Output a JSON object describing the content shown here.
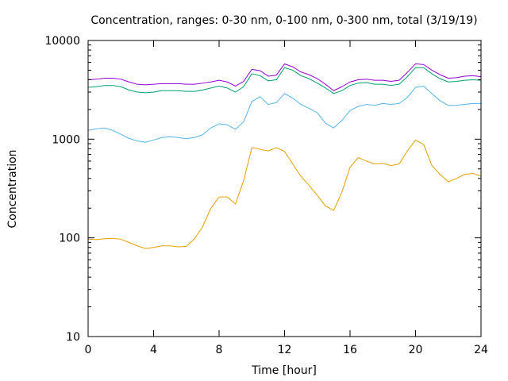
{
  "chart_data": {
    "type": "line",
    "title": "Concentration, ranges: 0-30 nm, 0-100 nm, 0-300 nm, total (3/19/19)",
    "xlabel": "Time [hour]",
    "ylabel": "Concentration",
    "xlim": [
      0,
      24
    ],
    "ylim": [
      10,
      10000
    ],
    "yscale": "log",
    "grid": false,
    "x_ticks": [
      0,
      4,
      8,
      12,
      16,
      20,
      24
    ],
    "x_tick_labels": [
      "0",
      "4",
      "8",
      "12",
      "16",
      "20",
      "24"
    ],
    "y_ticks": [
      10,
      100,
      1000,
      10000
    ],
    "y_tick_labels": [
      "10",
      "100",
      "1000",
      "10000"
    ],
    "x": [
      0,
      0.5,
      1,
      1.5,
      2,
      2.5,
      3,
      3.5,
      4,
      4.5,
      5,
      5.5,
      6,
      6.5,
      7,
      7.5,
      8,
      8.5,
      9,
      9.5,
      10,
      10.5,
      11,
      11.5,
      12,
      12.5,
      13,
      13.5,
      14,
      14.5,
      15,
      15.5,
      16,
      16.5,
      17,
      17.5,
      18,
      18.5,
      19,
      19.5,
      20,
      20.5,
      21,
      21.5,
      22,
      22.5,
      23,
      23.5,
      24
    ],
    "series": [
      {
        "color": "#e69f00",
        "values": [
          97,
          96,
          98,
          99,
          97,
          90,
          83,
          78,
          80,
          83,
          83,
          81,
          82,
          98,
          130,
          200,
          260,
          260,
          220,
          380,
          820,
          790,
          760,
          820,
          750,
          560,
          420,
          340,
          270,
          210,
          190,
          290,
          520,
          650,
          600,
          560,
          570,
          540,
          560,
          760,
          980,
          880,
          540,
          440,
          370,
          400,
          440,
          450,
          420
        ]
      },
      {
        "color": "#56b4e9",
        "values": [
          1230,
          1270,
          1300,
          1230,
          1120,
          1020,
          960,
          930,
          980,
          1040,
          1060,
          1040,
          1010,
          1040,
          1110,
          1300,
          1430,
          1400,
          1260,
          1500,
          2400,
          2700,
          2250,
          2350,
          2900,
          2600,
          2250,
          2050,
          1850,
          1450,
          1300,
          1550,
          1950,
          2150,
          2250,
          2200,
          2300,
          2250,
          2300,
          2650,
          3350,
          3450,
          2900,
          2450,
          2200,
          2200,
          2250,
          2300,
          2300
        ]
      },
      {
        "color": "#009e73",
        "values": [
          3350,
          3400,
          3500,
          3500,
          3400,
          3150,
          3000,
          2950,
          3000,
          3100,
          3100,
          3100,
          3050,
          3050,
          3150,
          3300,
          3450,
          3300,
          3000,
          3400,
          4600,
          4400,
          3900,
          4000,
          5300,
          5000,
          4400,
          4100,
          3700,
          3300,
          2900,
          3100,
          3500,
          3700,
          3750,
          3600,
          3600,
          3500,
          3600,
          4300,
          5300,
          5300,
          4600,
          4100,
          3800,
          3850,
          3950,
          4000,
          3950
        ]
      },
      {
        "color": "#9400d3",
        "values": [
          4000,
          4050,
          4150,
          4150,
          4050,
          3800,
          3600,
          3550,
          3600,
          3650,
          3650,
          3650,
          3600,
          3600,
          3700,
          3800,
          3950,
          3800,
          3450,
          3850,
          5100,
          4950,
          4350,
          4450,
          5800,
          5400,
          4800,
          4500,
          4100,
          3600,
          3100,
          3400,
          3800,
          4000,
          4050,
          3950,
          3950,
          3850,
          3950,
          4750,
          5800,
          5700,
          5000,
          4500,
          4150,
          4200,
          4350,
          4400,
          4300
        ]
      }
    ]
  }
}
